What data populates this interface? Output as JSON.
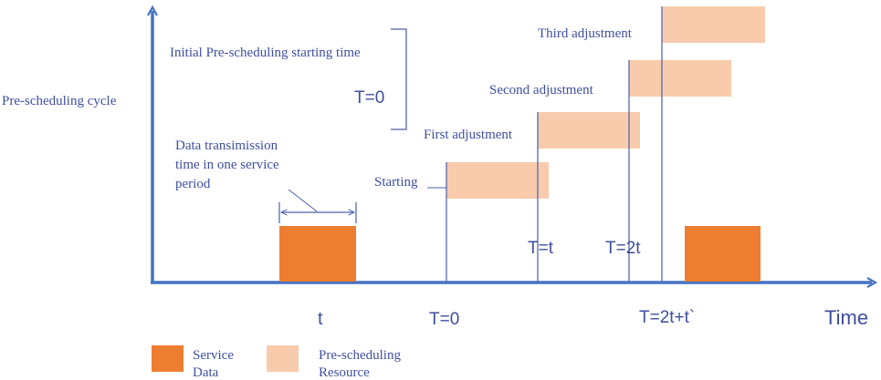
{
  "colors": {
    "axis": "#4472c4",
    "guide": "#4a5fa8",
    "text": "#3f4fa0",
    "service": "#ed7d31",
    "resource": "#f8cbad"
  },
  "axes": {
    "y_label": "Pre-scheduling cycle",
    "x_label": "Time"
  },
  "annotations": {
    "initial": "Initial Pre-scheduling starting time",
    "t_zero_top": "T=0",
    "data_tx_line1": "Data transimission",
    "data_tx_line2": "time in one service",
    "data_tx_line3": "period"
  },
  "stages": {
    "starting": "Starting",
    "first": "First adjustment",
    "second": "Second adjustment",
    "third": "Third adjustment"
  },
  "markers": {
    "t": "t",
    "t0": "T=0",
    "tt": "T=t",
    "t2t": "T=2t",
    "t2tt": "T=2t+t`"
  },
  "legend": {
    "service_line1": "Service",
    "service_line2": "Data",
    "resource_line1": "Pre-scheduling",
    "resource_line2": "Resource"
  }
}
